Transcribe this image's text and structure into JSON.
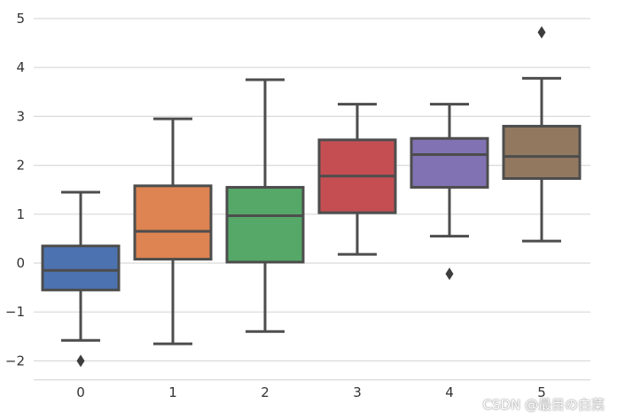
{
  "chart_data": {
    "type": "box",
    "title": "",
    "xlabel": "",
    "ylabel": "",
    "categories": [
      "0",
      "1",
      "2",
      "3",
      "4",
      "5"
    ],
    "yticks": [
      "5",
      "4",
      "3",
      "2",
      "1",
      "0",
      "−1",
      "−2"
    ],
    "ylim": [
      -2.35,
      5.25
    ],
    "grid": true,
    "boxes": [
      {
        "category": "0",
        "whisker_low": -1.58,
        "q1": -0.55,
        "median": -0.15,
        "q3": 0.35,
        "whisker_high": 1.45,
        "outliers": [
          -2.0
        ],
        "color": "#4c72b0"
      },
      {
        "category": "1",
        "whisker_low": -1.65,
        "q1": 0.08,
        "median": 0.65,
        "q3": 1.58,
        "whisker_high": 2.95,
        "outliers": [],
        "color": "#dd8452"
      },
      {
        "category": "2",
        "whisker_low": -1.4,
        "q1": 0.02,
        "median": 0.97,
        "q3": 1.55,
        "whisker_high": 3.75,
        "outliers": [],
        "color": "#55a868"
      },
      {
        "category": "3",
        "whisker_low": 0.18,
        "q1": 1.03,
        "median": 1.78,
        "q3": 2.52,
        "whisker_high": 3.25,
        "outliers": [],
        "color": "#c44e52"
      },
      {
        "category": "4",
        "whisker_low": 0.55,
        "q1": 1.55,
        "median": 2.22,
        "q3": 2.55,
        "whisker_high": 3.25,
        "outliers": [
          -0.22
        ],
        "color": "#8172b3"
      },
      {
        "category": "5",
        "whisker_low": 0.45,
        "q1": 1.73,
        "median": 2.18,
        "q3": 2.8,
        "whisker_high": 3.78,
        "outliers": [
          4.72
        ],
        "color": "#937860"
      }
    ]
  },
  "watermark": "CSDN @最目の白菜"
}
